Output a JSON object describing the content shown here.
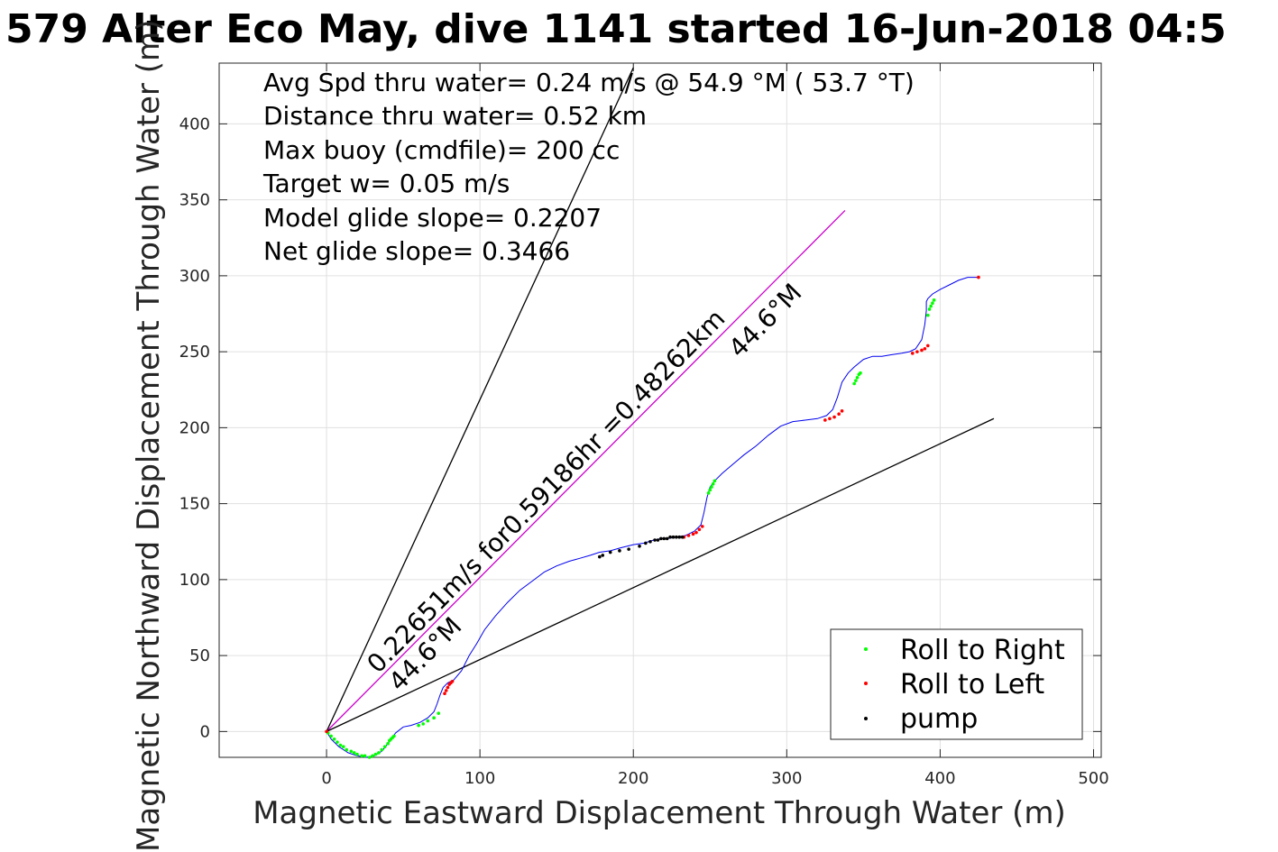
{
  "chart_data": {
    "type": "line",
    "title": "579 Alter Eco May, dive 1141 started 16-Jun-2018 04:5",
    "xlabel": "Magnetic Eastward Displacement Through Water (m)",
    "ylabel": "Magnetic Northward Displacement Through Water (m)",
    "xlim": [
      -70,
      505
    ],
    "ylim": [
      -17,
      440
    ],
    "xticks": [
      "0",
      "100",
      "200",
      "300",
      "400",
      "500"
    ],
    "yticks": [
      "0",
      "50",
      "100",
      "150",
      "200",
      "250",
      "300",
      "350",
      "400"
    ],
    "grid": true,
    "info_lines": [
      "Avg Spd thru water=  0.24 m/s @  54.9 °M ( 53.7 °T)",
      "Distance thru water=  0.52 km",
      "Max buoy (cmdfile)= 200 cc",
      "Target w= 0.05 m/s",
      "Model glide slope= 0.2207",
      "Net glide slope= 0.3466"
    ],
    "annotations": {
      "along_line": "0.22651m/s for0.59186hr =0.48262km",
      "heading_far": "44.6°M",
      "heading_near": "44.6°M"
    },
    "reference_lines": [
      {
        "name": "heading",
        "color": "#cc00cc",
        "x": [
          0,
          338
        ],
        "y": [
          0,
          343
        ]
      },
      {
        "name": "bound-steep",
        "color": "#000000",
        "x": [
          0,
          200
        ],
        "y": [
          0,
          437
        ]
      },
      {
        "name": "bound-shallow",
        "color": "#000000",
        "x": [
          0,
          435
        ],
        "y": [
          0,
          206
        ]
      }
    ],
    "track": {
      "color": "#0000ee",
      "x": [
        0,
        3,
        8,
        14,
        20,
        26,
        31,
        36,
        40,
        45,
        50,
        55,
        61,
        66,
        70,
        72,
        74,
        76,
        79,
        83,
        88,
        93,
        98,
        103,
        110,
        118,
        126,
        134,
        142,
        150,
        158,
        165,
        172,
        178,
        185,
        192,
        200,
        207,
        213,
        218,
        222,
        228,
        234,
        240,
        244,
        246,
        248,
        250,
        253,
        258,
        265,
        272,
        280,
        288,
        296,
        304,
        312,
        320,
        326,
        330,
        333,
        336,
        340,
        344,
        350,
        356,
        362,
        368,
        375,
        380,
        384,
        388,
        390,
        391,
        391,
        392,
        395,
        400,
        406,
        412,
        418,
        425
      ],
      "y": [
        0,
        -5,
        -10,
        -14,
        -16,
        -17,
        -16,
        -13,
        -8,
        -1,
        3,
        4,
        6,
        9,
        13,
        18,
        24,
        29,
        32,
        34,
        40,
        50,
        58,
        67,
        76,
        85,
        93,
        99,
        105,
        109,
        112,
        114,
        116,
        118,
        119,
        121,
        123,
        124,
        126,
        127,
        127,
        128,
        129,
        132,
        136,
        144,
        154,
        161,
        165,
        170,
        176,
        182,
        188,
        195,
        201,
        204,
        205,
        206,
        208,
        212,
        220,
        230,
        236,
        240,
        245,
        247,
        247,
        248,
        249,
        250,
        252,
        258,
        268,
        277,
        283,
        285,
        288,
        291,
        294,
        297,
        299,
        299
      ]
    },
    "markers": {
      "roll_to_right": {
        "color": "#00ff00",
        "x": [
          1,
          3,
          5,
          7,
          9,
          11,
          13,
          16,
          18,
          20,
          23,
          25,
          28,
          30,
          32,
          34,
          36,
          38,
          40,
          41,
          42,
          43,
          44,
          60,
          63,
          66,
          70,
          73,
          249,
          250,
          251,
          252,
          253,
          344,
          345,
          346,
          347,
          348,
          392,
          393,
          394,
          395,
          396
        ],
        "y": [
          -1,
          -3,
          -5,
          -7,
          -9,
          -10,
          -12,
          -13,
          -14,
          -15,
          -16,
          -16,
          -17,
          -16,
          -15,
          -14,
          -12,
          -10,
          -8,
          -6,
          -5,
          -4,
          -3,
          4,
          5,
          7,
          9,
          12,
          157,
          159,
          161,
          163,
          165,
          229,
          231,
          233,
          235,
          236,
          274,
          278,
          280,
          282,
          284
        ]
      },
      "roll_to_left": {
        "color": "#ff0000",
        "x": [
          0,
          77,
          78,
          79,
          80,
          81,
          82,
          233,
          236,
          239,
          241,
          243,
          245,
          325,
          328,
          331,
          334,
          336,
          382,
          385,
          388,
          390,
          392,
          425
        ],
        "y": [
          0,
          25,
          27,
          29,
          31,
          32,
          33,
          128,
          129,
          130,
          131,
          133,
          135,
          205,
          206,
          207,
          209,
          211,
          249,
          250,
          251,
          252,
          254,
          299
        ]
      },
      "pump": {
        "color": "#000000",
        "x": [
          178,
          180,
          185,
          191,
          197,
          204,
          208,
          211,
          214,
          216,
          218,
          220,
          222,
          224,
          226,
          228,
          230,
          232
        ],
        "y": [
          115,
          116,
          118,
          119,
          120,
          122,
          124,
          125,
          126,
          126,
          127,
          127,
          127,
          128,
          128,
          128,
          128,
          128
        ]
      }
    },
    "legend": {
      "placement": "bottom-right",
      "entries": [
        "Roll to Right",
        "Roll to Left",
        "pump"
      ]
    }
  }
}
